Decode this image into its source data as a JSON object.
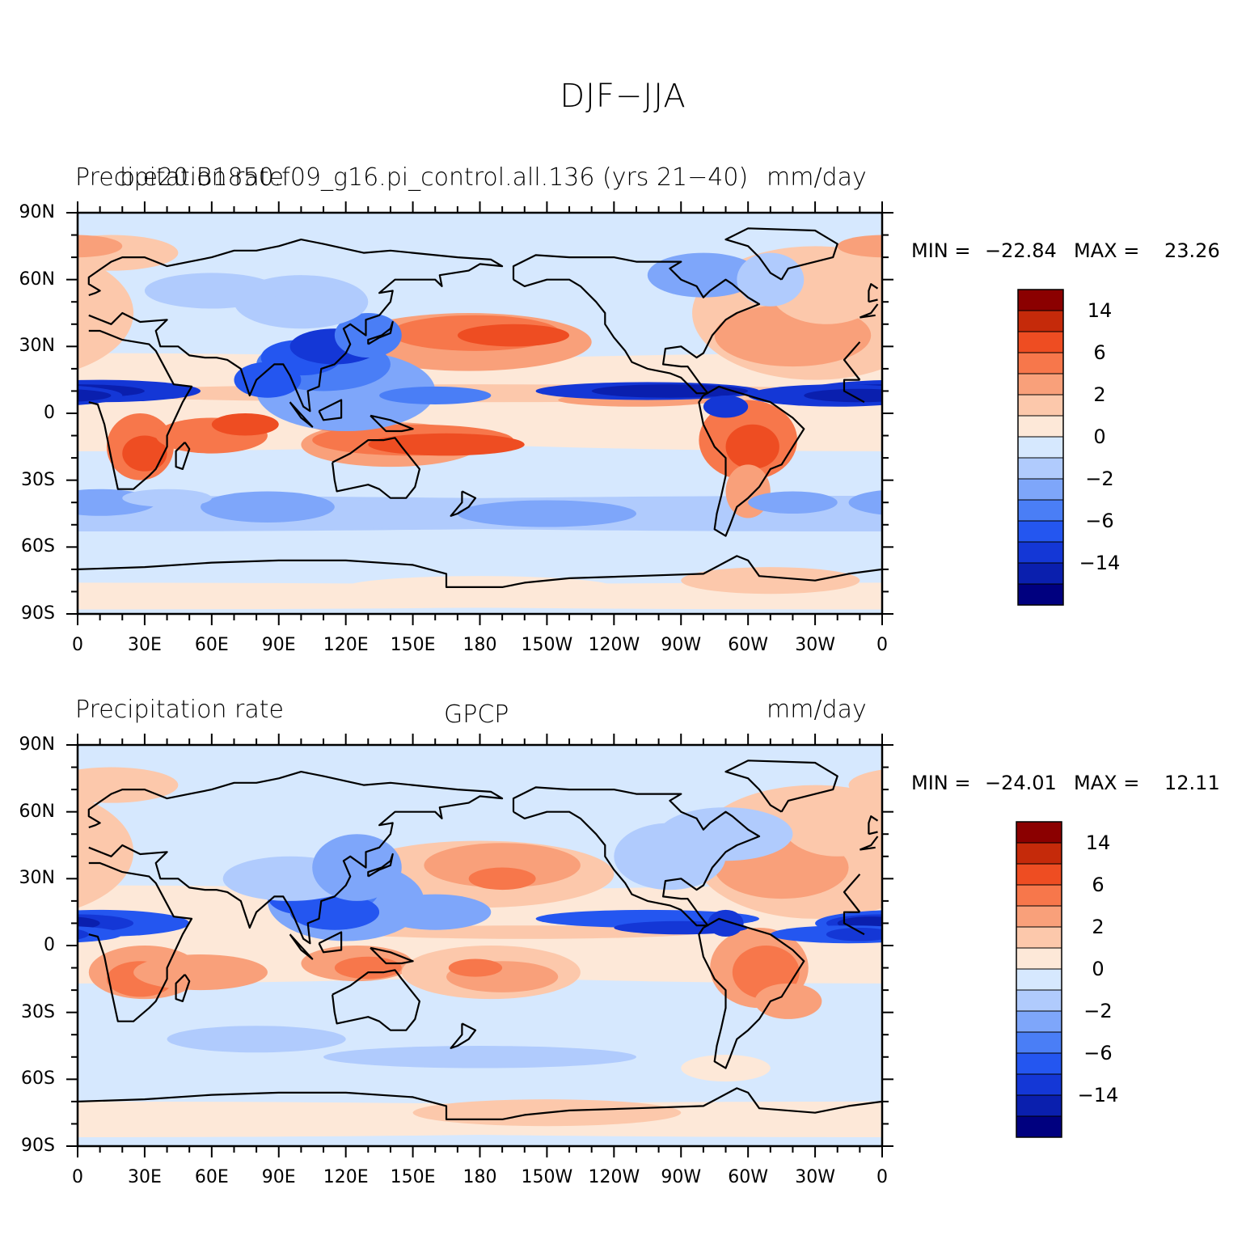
{
  "figure": {
    "title": "DJF−JJA"
  },
  "colorbar_colors": [
    "#00007f",
    "#0a1fae",
    "#1437d6",
    "#2456f0",
    "#4a7ef6",
    "#7ea6fa",
    "#b0cbfd",
    "#d6e8fe",
    "#fde8d8",
    "#fcc8ab",
    "#f9a07a",
    "#f7774b",
    "#ee4d22",
    "#c52a0a",
    "#8b0000"
  ],
  "colorbar_labels": [
    "−14",
    "−6",
    "−2",
    "0",
    "2",
    "6",
    "14"
  ],
  "lat_labels": [
    "90N",
    "60N",
    "30N",
    "0",
    "30S",
    "60S",
    "90S"
  ],
  "lon_labels": [
    "0",
    "30E",
    "60E",
    "90E",
    "120E",
    "150E",
    "180",
    "150W",
    "120W",
    "90W",
    "60W",
    "30W",
    "0"
  ],
  "panels": [
    {
      "left_label": "Precipitation rate",
      "center_label": "b.e20.B1850.f09_g16.pi_control.all.136 (yrs 21−40)",
      "right_label": "mm/day",
      "min_label": "MIN =",
      "min_value": "−22.84",
      "max_label": "MAX =",
      "max_value": "23.26"
    },
    {
      "left_label": "Precipitation rate",
      "center_label": "GPCP",
      "right_label": "mm/day",
      "min_label": "MIN =",
      "min_value": "−24.01",
      "max_label": "MAX =",
      "max_value": "12.11"
    }
  ]
}
